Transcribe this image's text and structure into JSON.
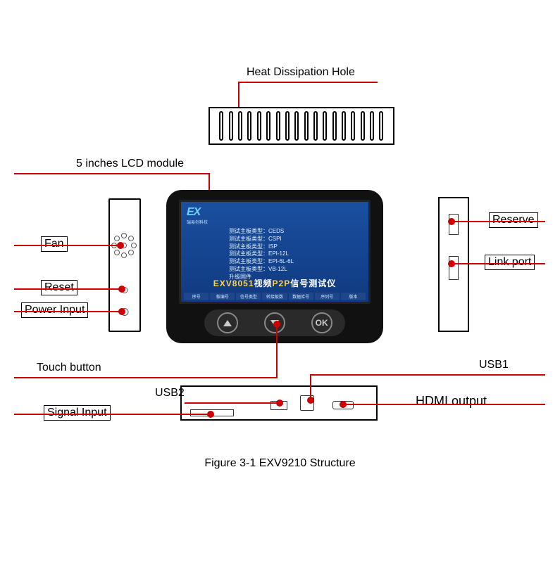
{
  "colors": {
    "leader": "#cc0000",
    "panel_border": "#000000",
    "device_body": "#111111",
    "screen_bg_top": "#1a4fa0",
    "screen_bg_bottom": "#103a80"
  },
  "labels": {
    "heat": "Heat Dissipation Hole",
    "lcd": "5 inches LCD module",
    "fan": "Fan",
    "reset": "Reset",
    "power": "Power Input",
    "touch": "Touch button",
    "signal": "Signal Input",
    "usb2": "USB2",
    "usb1": "USB1",
    "hdmi": "HDMI output",
    "reserve": "Reserve",
    "link": "Link port"
  },
  "screen": {
    "logo": "EX",
    "logo_sub": "瑞易创科技",
    "lines": [
      "测试主板类型：CEDS",
      "测试主板类型：CSPI",
      "测试主板类型：ISP",
      "测试主板类型：EPI-12L",
      "测试主板类型：EPI-6L-6L",
      "测试主板类型：VB-12L",
      "升级固件"
    ],
    "title_a": "EXV8051",
    "title_b": "视频",
    "title_c": "P2P",
    "title_d": "信号测试仪",
    "tabs": [
      "序号",
      "板编号",
      "信号类型",
      "转接板数",
      "数据库号",
      "序列号",
      "版本"
    ]
  },
  "buttons": {
    "ok": "OK"
  },
  "caption": "Figure 3-1 EXV9210 Structure",
  "vent": {
    "slot_count": 18
  }
}
